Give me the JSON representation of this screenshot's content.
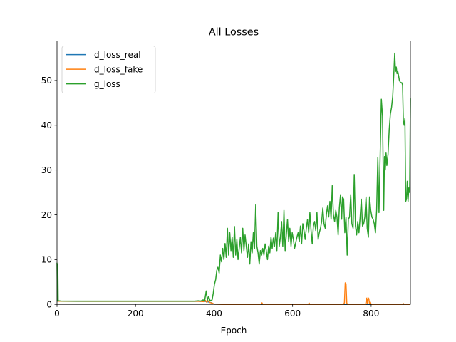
{
  "chart_data": {
    "type": "line",
    "title": "All Losses",
    "xlabel": "Epoch",
    "ylabel": "",
    "xlim": [
      0,
      900
    ],
    "ylim": [
      0,
      58.8
    ],
    "xticks": [
      0,
      200,
      400,
      600,
      800
    ],
    "yticks": [
      0,
      10,
      20,
      30,
      40,
      50
    ],
    "grid": false,
    "legend_position": "top-left",
    "series": [
      {
        "name": "d_loss_real",
        "color": "#1f77b4",
        "points": [
          [
            0,
            0.8
          ],
          [
            2,
            0.7
          ],
          [
            5,
            0.7
          ],
          [
            50,
            0.69
          ],
          [
            100,
            0.69
          ],
          [
            200,
            0.69
          ],
          [
            300,
            0.69
          ],
          [
            360,
            0.69
          ],
          [
            380,
            0.65
          ],
          [
            392,
            0.4
          ],
          [
            400,
            0.05
          ],
          [
            500,
            0.0
          ],
          [
            600,
            0.0
          ],
          [
            700,
            0.0
          ],
          [
            800,
            0.0
          ],
          [
            900,
            0.0
          ]
        ]
      },
      {
        "name": "d_loss_fake",
        "color": "#ff7f0e",
        "points": [
          [
            0,
            0.7
          ],
          [
            2,
            0.8
          ],
          [
            5,
            0.7
          ],
          [
            100,
            0.69
          ],
          [
            200,
            0.69
          ],
          [
            300,
            0.69
          ],
          [
            360,
            0.69
          ],
          [
            375,
            0.6
          ],
          [
            378,
            0.9
          ],
          [
            381,
            0.5
          ],
          [
            385,
            0.8
          ],
          [
            390,
            0.4
          ],
          [
            395,
            0.3
          ],
          [
            400,
            0.05
          ],
          [
            420,
            0.0
          ],
          [
            520,
            0.0
          ],
          [
            522,
            0.35
          ],
          [
            524,
            0.0
          ],
          [
            600,
            0.0
          ],
          [
            640,
            0.0
          ],
          [
            642,
            0.3
          ],
          [
            644,
            0.0
          ],
          [
            700,
            0.0
          ],
          [
            730,
            0.0
          ],
          [
            732,
            0.4
          ],
          [
            734,
            4.8
          ],
          [
            736,
            4.6
          ],
          [
            738,
            0.3
          ],
          [
            740,
            0.0
          ],
          [
            786,
            0.0
          ],
          [
            788,
            1.4
          ],
          [
            790,
            0.1
          ],
          [
            792,
            1.5
          ],
          [
            794,
            1.3
          ],
          [
            796,
            0.1
          ],
          [
            798,
            0.5
          ],
          [
            800,
            0.0
          ],
          [
            850,
            0.0
          ],
          [
            880,
            0.0
          ],
          [
            882,
            0.2
          ],
          [
            884,
            0.0
          ],
          [
            900,
            0.0
          ]
        ]
      },
      {
        "name": "g_loss",
        "color": "#2ca02c",
        "points": [
          [
            0,
            9.3
          ],
          [
            1,
            0.7
          ],
          [
            2,
            9.0
          ],
          [
            3,
            0.9
          ],
          [
            4,
            0.8
          ],
          [
            10,
            0.75
          ],
          [
            50,
            0.72
          ],
          [
            100,
            0.72
          ],
          [
            200,
            0.72
          ],
          [
            300,
            0.72
          ],
          [
            350,
            0.72
          ],
          [
            360,
            0.8
          ],
          [
            366,
            0.75
          ],
          [
            372,
            1.0
          ],
          [
            376,
            0.8
          ],
          [
            380,
            3.0
          ],
          [
            383,
            0.9
          ],
          [
            386,
            1.8
          ],
          [
            390,
            0.8
          ],
          [
            395,
            1.0
          ],
          [
            398,
            2.5
          ],
          [
            401,
            4.5
          ],
          [
            404,
            5.5
          ],
          [
            407,
            7.6
          ],
          [
            410,
            8.3
          ],
          [
            413,
            7.0
          ],
          [
            416,
            11.0
          ],
          [
            419,
            9.5
          ],
          [
            422,
            12.5
          ],
          [
            425,
            10.0
          ],
          [
            428,
            13.6
          ],
          [
            431,
            10.5
          ],
          [
            434,
            17.0
          ],
          [
            437,
            11.0
          ],
          [
            440,
            16.0
          ],
          [
            443,
            12.0
          ],
          [
            446,
            15.0
          ],
          [
            449,
            10.5
          ],
          [
            452,
            17.4
          ],
          [
            455,
            11.0
          ],
          [
            458,
            14.5
          ],
          [
            461,
            10.0
          ],
          [
            464,
            12.5
          ],
          [
            467,
            15.0
          ],
          [
            470,
            11.5
          ],
          [
            473,
            17.0
          ],
          [
            476,
            12.0
          ],
          [
            479,
            15.5
          ],
          [
            482,
            13.0
          ],
          [
            485,
            10.5
          ],
          [
            488,
            13.5
          ],
          [
            491,
            9.0
          ],
          [
            494,
            14.0
          ],
          [
            497,
            11.5
          ],
          [
            500,
            16.0
          ],
          [
            503,
            12.5
          ],
          [
            506,
            22.2
          ],
          [
            509,
            13.0
          ],
          [
            512,
            11.5
          ],
          [
            515,
            9.0
          ],
          [
            518,
            12.0
          ],
          [
            521,
            11.0
          ],
          [
            524,
            12.5
          ],
          [
            527,
            11.0
          ],
          [
            530,
            13.5
          ],
          [
            533,
            12.0
          ],
          [
            536,
            10.0
          ],
          [
            539,
            13.0
          ],
          [
            542,
            11.5
          ],
          [
            545,
            15.0
          ],
          [
            548,
            12.5
          ],
          [
            551,
            14.8
          ],
          [
            554,
            13.0
          ],
          [
            557,
            16.0
          ],
          [
            560,
            12.0
          ],
          [
            563,
            20.5
          ],
          [
            566,
            13.0
          ],
          [
            569,
            15.0
          ],
          [
            572,
            18.5
          ],
          [
            575,
            13.0
          ],
          [
            578,
            21.0
          ],
          [
            581,
            12.0
          ],
          [
            584,
            15.5
          ],
          [
            587,
            19.0
          ],
          [
            590,
            14.0
          ],
          [
            593,
            17.0
          ],
          [
            596,
            13.0
          ],
          [
            599,
            16.0
          ],
          [
            602,
            14.5
          ],
          [
            605,
            12.5
          ],
          [
            608,
            13.8
          ],
          [
            611,
            15.0
          ],
          [
            614,
            16.0
          ],
          [
            617,
            14.0
          ],
          [
            620,
            17.5
          ],
          [
            623,
            13.5
          ],
          [
            626,
            18.0
          ],
          [
            629,
            16.5
          ],
          [
            632,
            14.5
          ],
          [
            635,
            17.0
          ],
          [
            638,
            19.0
          ],
          [
            641,
            16.0
          ],
          [
            644,
            20.5
          ],
          [
            647,
            16.5
          ],
          [
            650,
            13.5
          ],
          [
            653,
            17.5
          ],
          [
            656,
            18.5
          ],
          [
            659,
            16.5
          ],
          [
            662,
            20.5
          ],
          [
            665,
            14.5
          ],
          [
            668,
            16.0
          ],
          [
            671,
            17.0
          ],
          [
            674,
            18.5
          ],
          [
            677,
            21.5
          ],
          [
            680,
            18.0
          ],
          [
            683,
            17.0
          ],
          [
            686,
            20.0
          ],
          [
            689,
            22.0
          ],
          [
            692,
            19.5
          ],
          [
            695,
            23.0
          ],
          [
            698,
            19.0
          ],
          [
            701,
            26.5
          ],
          [
            704,
            20.0
          ],
          [
            707,
            18.5
          ],
          [
            710,
            21.0
          ],
          [
            713,
            19.5
          ],
          [
            716,
            15.5
          ],
          [
            719,
            21.5
          ],
          [
            722,
            24.5
          ],
          [
            725,
            19.0
          ],
          [
            727,
            24.0
          ],
          [
            730,
            23.5
          ],
          [
            733,
            16.0
          ],
          [
            736,
            19.5
          ],
          [
            739,
            11.0
          ],
          [
            742,
            19.0
          ],
          [
            745,
            19.5
          ],
          [
            748,
            24.5
          ],
          [
            751,
            18.0
          ],
          [
            754,
            17.0
          ],
          [
            757,
            29.0
          ],
          [
            760,
            17.5
          ],
          [
            763,
            15.5
          ],
          [
            766,
            18.5
          ],
          [
            769,
            16.0
          ],
          [
            772,
            19.5
          ],
          [
            775,
            23.5
          ],
          [
            778,
            17.5
          ],
          [
            781,
            18.0
          ],
          [
            784,
            19.5
          ],
          [
            787,
            24.0
          ],
          [
            790,
            17.0
          ],
          [
            793,
            15.0
          ],
          [
            796,
            24.0
          ],
          [
            799,
            21.0
          ],
          [
            802,
            19.5
          ],
          [
            805,
            19.0
          ],
          [
            808,
            18.0
          ],
          [
            811,
            16.0
          ],
          [
            814,
            21.0
          ],
          [
            817,
            32.8
          ],
          [
            820,
            20.5
          ],
          [
            823,
            33.5
          ],
          [
            826,
            45.8
          ],
          [
            829,
            42.0
          ],
          [
            832,
            21.0
          ],
          [
            834,
            33.0
          ],
          [
            836,
            30.0
          ],
          [
            838,
            33.8
          ],
          [
            840,
            31.0
          ],
          [
            843,
            33.5
          ],
          [
            846,
            39.0
          ],
          [
            849,
            42.5
          ],
          [
            852,
            44.0
          ],
          [
            855,
            46.5
          ],
          [
            858,
            52.0
          ],
          [
            860,
            56.1
          ],
          [
            862,
            52.0
          ],
          [
            864,
            53.0
          ],
          [
            866,
            51.5
          ],
          [
            868,
            52.0
          ],
          [
            870,
            51.0
          ],
          [
            872,
            50.0
          ],
          [
            875,
            49.5
          ],
          [
            878,
            49.5
          ],
          [
            880,
            49.0
          ],
          [
            882,
            41.0
          ],
          [
            884,
            40.0
          ],
          [
            886,
            41.5
          ],
          [
            888,
            23.0
          ],
          [
            890,
            23.5
          ],
          [
            892,
            27.5
          ],
          [
            894,
            23.0
          ],
          [
            896,
            26.0
          ],
          [
            898,
            25.0
          ],
          [
            900,
            46.0
          ]
        ]
      }
    ]
  }
}
